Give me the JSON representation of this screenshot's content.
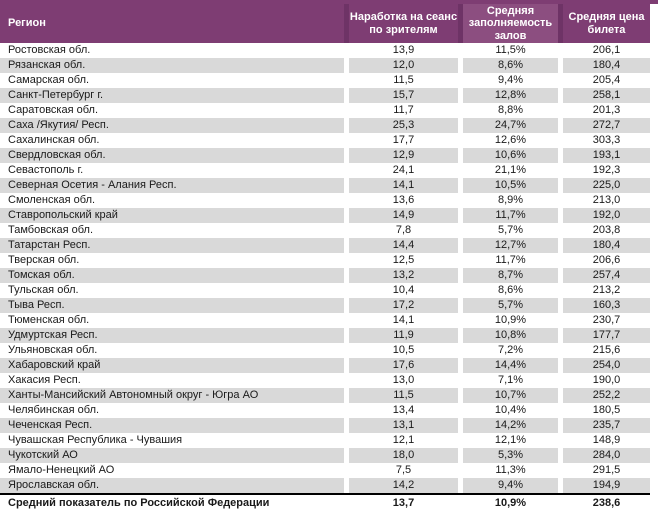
{
  "table": {
    "columns": [
      {
        "id": "region",
        "label": "Регион"
      },
      {
        "id": "sessions",
        "label": "Наработка на сеанс по зрителям"
      },
      {
        "id": "occupancy",
        "label": "Средняя заполняемость залов"
      },
      {
        "id": "price",
        "label": "Средняя цена билета"
      }
    ],
    "rows": [
      {
        "region": "Ростовская обл.",
        "sessions": "13,9",
        "occupancy": "11,5%",
        "price": "206,1"
      },
      {
        "region": "Рязанская обл.",
        "sessions": "12,0",
        "occupancy": "8,6%",
        "price": "180,4"
      },
      {
        "region": "Самарская обл.",
        "sessions": "11,5",
        "occupancy": "9,4%",
        "price": "205,4"
      },
      {
        "region": "Санкт-Петербург г.",
        "sessions": "15,7",
        "occupancy": "12,8%",
        "price": "258,1"
      },
      {
        "region": "Саратовская обл.",
        "sessions": "11,7",
        "occupancy": "8,8%",
        "price": "201,3"
      },
      {
        "region": "Саха /Якутия/ Респ.",
        "sessions": "25,3",
        "occupancy": "24,7%",
        "price": "272,7"
      },
      {
        "region": "Сахалинская обл.",
        "sessions": "17,7",
        "occupancy": "12,6%",
        "price": "303,3"
      },
      {
        "region": "Свердловская обл.",
        "sessions": "12,9",
        "occupancy": "10,6%",
        "price": "193,1"
      },
      {
        "region": "Севастополь г.",
        "sessions": "24,1",
        "occupancy": "21,1%",
        "price": "192,3"
      },
      {
        "region": "Северная Осетия - Алания Респ.",
        "sessions": "14,1",
        "occupancy": "10,5%",
        "price": "225,0"
      },
      {
        "region": "Смоленская обл.",
        "sessions": "13,6",
        "occupancy": "8,9%",
        "price": "213,0"
      },
      {
        "region": "Ставропольский край",
        "sessions": "14,9",
        "occupancy": "11,7%",
        "price": "192,0"
      },
      {
        "region": "Тамбовская обл.",
        "sessions": "7,8",
        "occupancy": "5,7%",
        "price": "203,8"
      },
      {
        "region": "Татарстан Респ.",
        "sessions": "14,4",
        "occupancy": "12,7%",
        "price": "180,4"
      },
      {
        "region": "Тверская обл.",
        "sessions": "12,5",
        "occupancy": "11,7%",
        "price": "206,6"
      },
      {
        "region": "Томская обл.",
        "sessions": "13,2",
        "occupancy": "8,7%",
        "price": "257,4"
      },
      {
        "region": "Тульская обл.",
        "sessions": "10,4",
        "occupancy": "8,6%",
        "price": "213,2"
      },
      {
        "region": "Тыва Респ.",
        "sessions": "17,2",
        "occupancy": "5,7%",
        "price": "160,3"
      },
      {
        "region": "Тюменская обл.",
        "sessions": "14,1",
        "occupancy": "10,9%",
        "price": "230,7"
      },
      {
        "region": "Удмуртская Респ.",
        "sessions": "11,9",
        "occupancy": "10,8%",
        "price": "177,7"
      },
      {
        "region": "Ульяновская обл.",
        "sessions": "10,5",
        "occupancy": "7,2%",
        "price": "215,6"
      },
      {
        "region": "Хабаровский край",
        "sessions": "17,6",
        "occupancy": "14,4%",
        "price": "254,0"
      },
      {
        "region": "Хакасия Респ.",
        "sessions": "13,0",
        "occupancy": "7,1%",
        "price": "190,0"
      },
      {
        "region": "Ханты-Мансийский Автономный округ - Югра АО",
        "sessions": "11,5",
        "occupancy": "10,7%",
        "price": "252,2"
      },
      {
        "region": "Челябинская обл.",
        "sessions": "13,4",
        "occupancy": "10,4%",
        "price": "180,5"
      },
      {
        "region": "Чеченская Респ.",
        "sessions": "13,1",
        "occupancy": "14,2%",
        "price": "235,7"
      },
      {
        "region": "Чувашская Республика - Чувашия",
        "sessions": "12,1",
        "occupancy": "12,1%",
        "price": "148,9"
      },
      {
        "region": "Чукотский АО",
        "sessions": "18,0",
        "occupancy": "5,3%",
        "price": "284,0"
      },
      {
        "region": "Ямало-Ненецкий АО",
        "sessions": "7,5",
        "occupancy": "11,3%",
        "price": "291,5"
      },
      {
        "region": "Ярославская обл.",
        "sessions": "14,2",
        "occupancy": "9,4%",
        "price": "194,9"
      }
    ],
    "total": {
      "region": "Средний показатель по Российской Федерации",
      "sessions": "13,7",
      "occupancy": "10,9%",
      "price": "238,6"
    }
  },
  "colors": {
    "header_background": "#7E3D73",
    "header_background_light": "#8C4E80",
    "header_gap": "#6E3366",
    "header_text": "#FFFFFF",
    "stripe": "#D9D9D9",
    "text": "#1A1A1A",
    "total_border": "#000000"
  }
}
